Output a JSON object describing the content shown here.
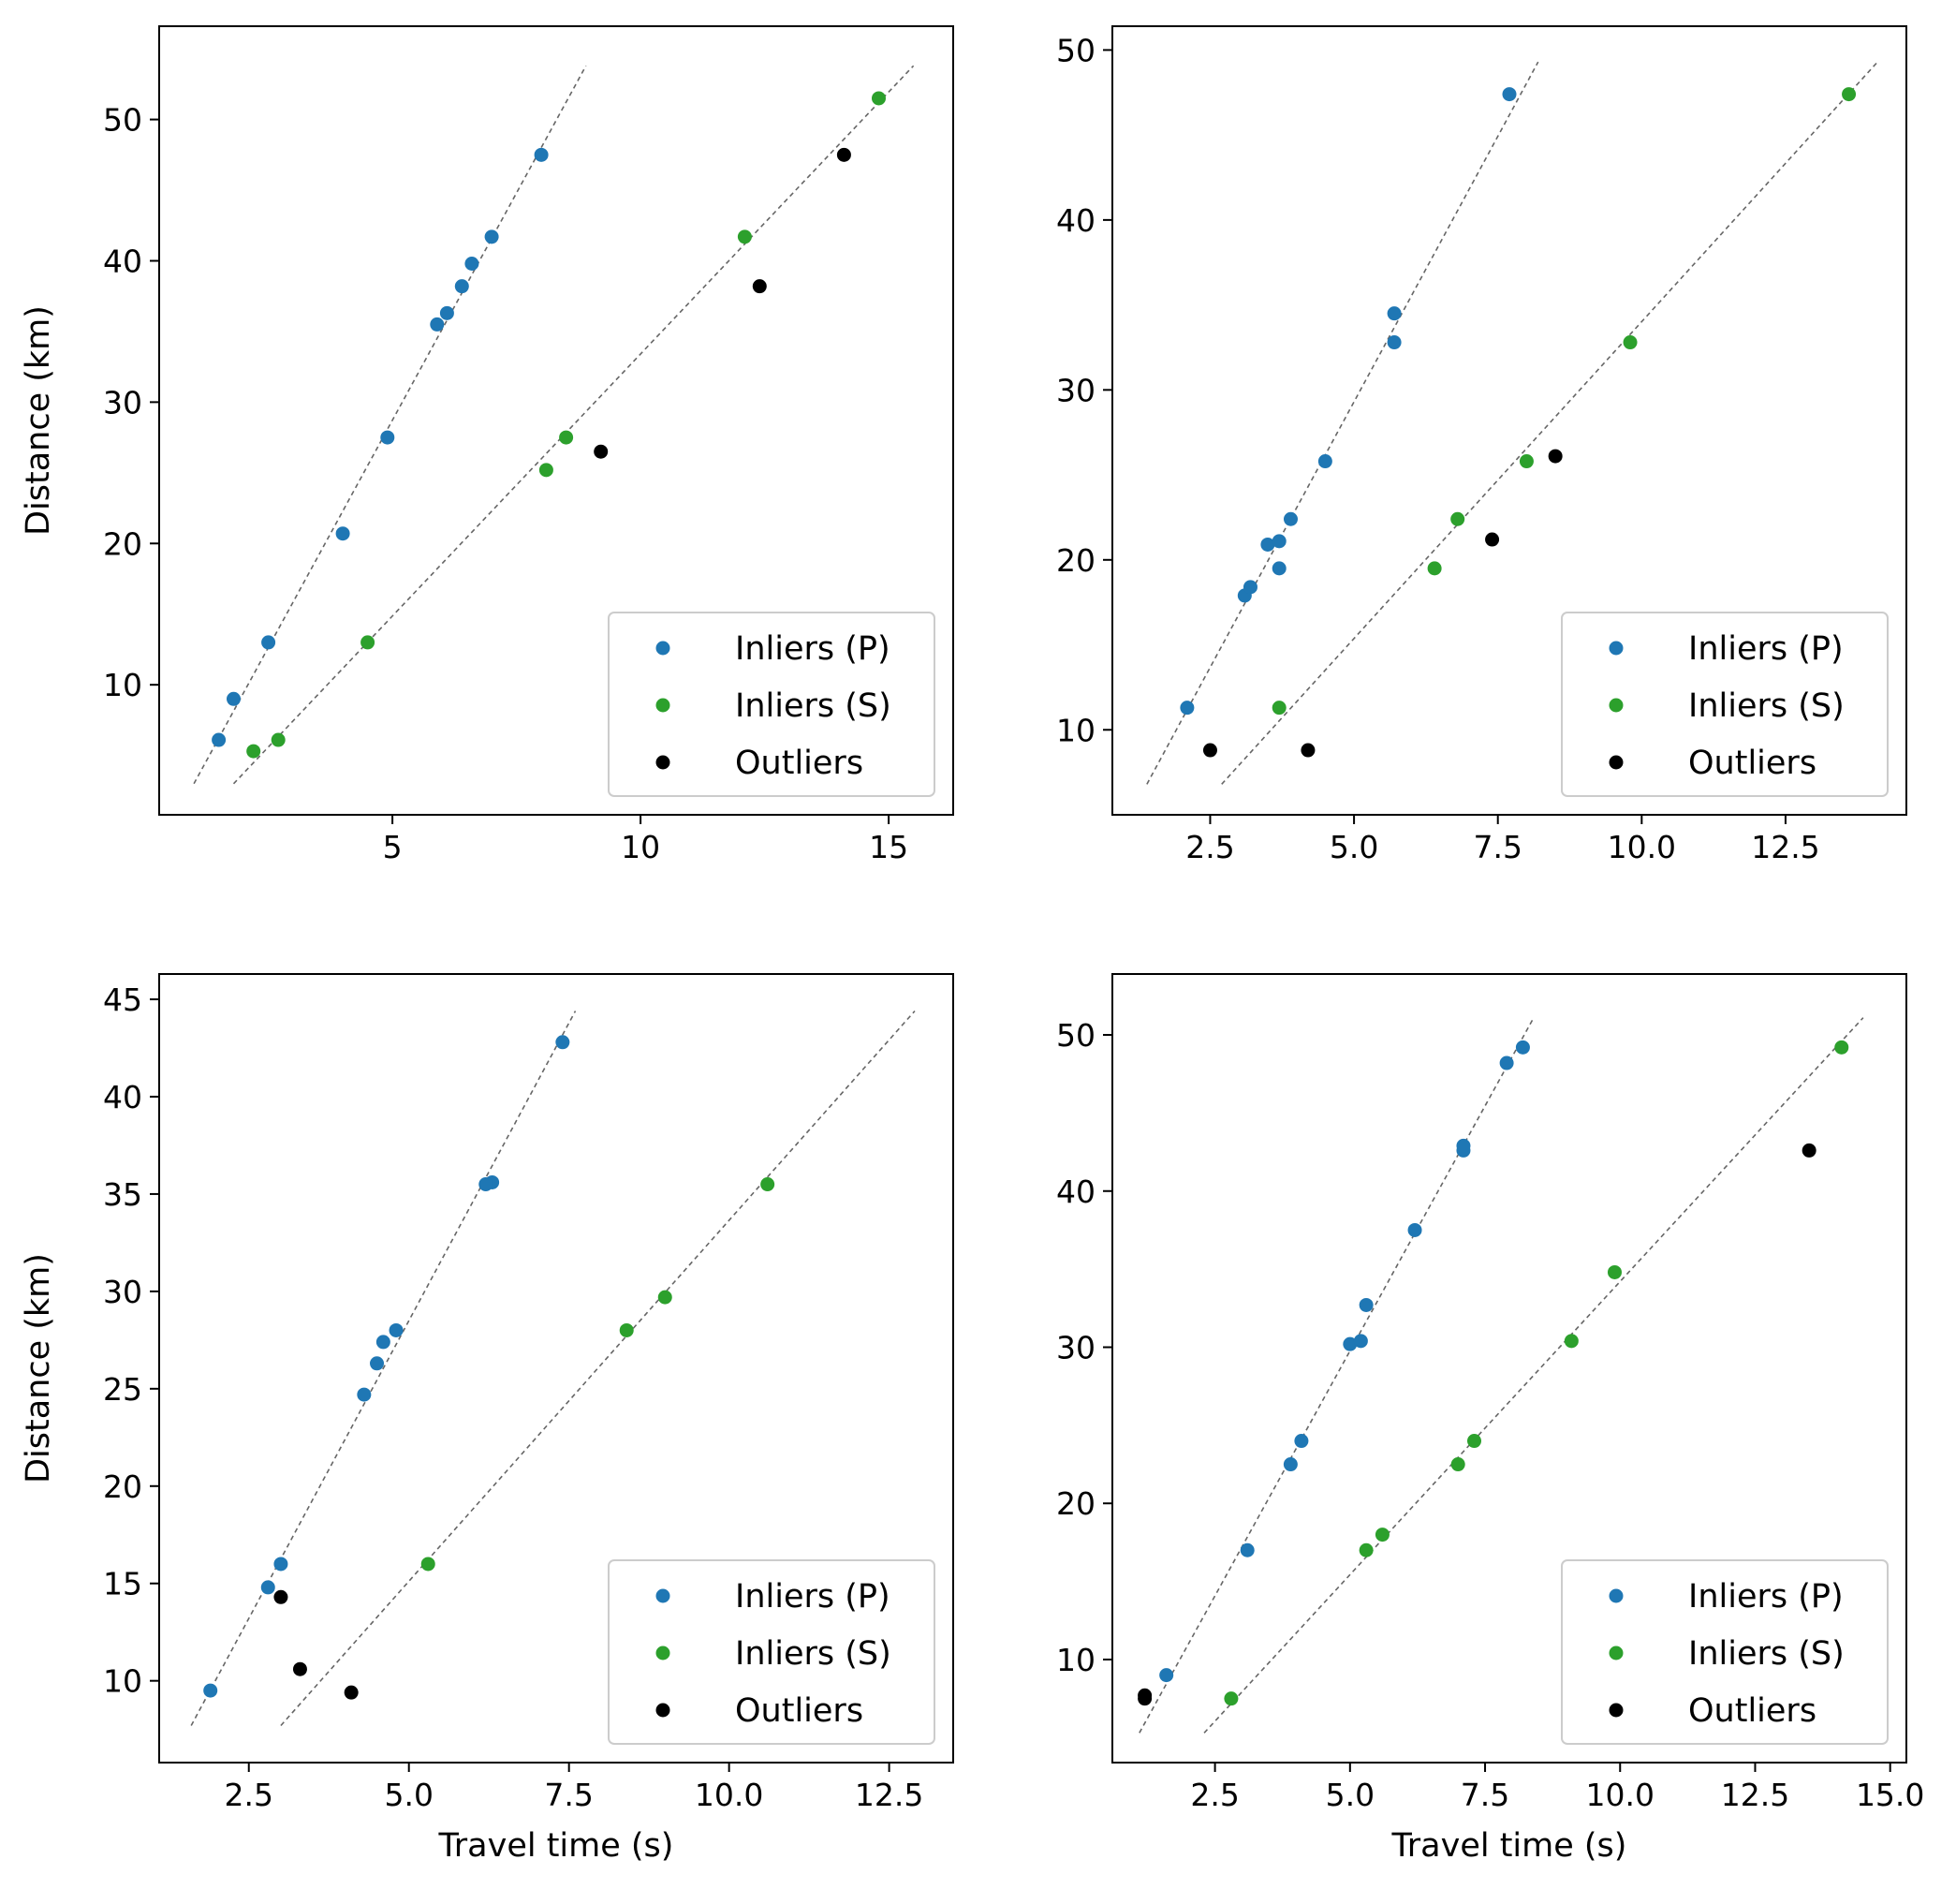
{
  "figure": {
    "colors": {
      "p": "#1f77b4",
      "s": "#2ca02c",
      "outlier": "#000000",
      "fit": "#666666"
    }
  },
  "chart_data": [
    {
      "type": "scatter",
      "title": "",
      "xlabel": "",
      "ylabel": "Distance (km)",
      "xlim": [
        0.3,
        16.3
      ],
      "ylim": [
        0.8,
        56.6
      ],
      "xticks": [
        5,
        10,
        15
      ],
      "yticks": [
        10,
        20,
        30,
        40,
        50
      ],
      "legend_position": "lower-right",
      "series": [
        {
          "name": "Inliers (P)",
          "key": "p",
          "points": [
            [
              1.5,
              6.1
            ],
            [
              1.8,
              9.0
            ],
            [
              2.5,
              13.0
            ],
            [
              4.0,
              20.7
            ],
            [
              4.9,
              27.5
            ],
            [
              5.9,
              35.5
            ],
            [
              6.1,
              36.3
            ],
            [
              6.4,
              38.2
            ],
            [
              6.6,
              39.8
            ],
            [
              7.0,
              41.7
            ],
            [
              8.0,
              47.5
            ]
          ]
        },
        {
          "name": "Inliers (S)",
          "key": "s",
          "points": [
            [
              2.2,
              5.3
            ],
            [
              2.7,
              6.1
            ],
            [
              4.5,
              13.0
            ],
            [
              8.1,
              25.2
            ],
            [
              8.5,
              27.5
            ],
            [
              12.1,
              41.7
            ],
            [
              14.8,
              51.5
            ]
          ]
        },
        {
          "name": "Outliers",
          "key": "outlier",
          "points": [
            [
              9.2,
              26.5
            ],
            [
              12.4,
              38.2
            ],
            [
              14.1,
              47.5
            ]
          ]
        }
      ],
      "fit_lines": [
        {
          "key": "p",
          "from": [
            1.0,
            3.0
          ],
          "to": [
            8.9,
            53.8
          ]
        },
        {
          "key": "s",
          "from": [
            1.8,
            3.0
          ],
          "to": [
            15.5,
            53.8
          ]
        }
      ]
    },
    {
      "type": "scatter",
      "title": "",
      "xlabel": "",
      "ylabel": "",
      "xlim": [
        0.8,
        14.6
      ],
      "ylim": [
        5.0,
        51.4
      ],
      "xticks": [
        2.5,
        5.0,
        7.5,
        10.0,
        12.5
      ],
      "xtick_labels": [
        "2.5",
        "5.0",
        "7.5",
        "10.0",
        "12.5"
      ],
      "yticks": [
        10,
        20,
        30,
        40,
        50
      ],
      "legend_position": "lower-right",
      "series": [
        {
          "name": "Inliers (P)",
          "key": "p",
          "points": [
            [
              2.1,
              11.3
            ],
            [
              3.1,
              17.9
            ],
            [
              3.2,
              18.4
            ],
            [
              3.5,
              20.9
            ],
            [
              3.7,
              21.1
            ],
            [
              3.7,
              19.5
            ],
            [
              3.9,
              22.4
            ],
            [
              4.5,
              25.8
            ],
            [
              5.7,
              32.8
            ],
            [
              5.7,
              34.5
            ],
            [
              7.7,
              47.4
            ]
          ]
        },
        {
          "name": "Inliers (S)",
          "key": "s",
          "points": [
            [
              3.7,
              11.3
            ],
            [
              6.4,
              19.5
            ],
            [
              6.8,
              22.4
            ],
            [
              8.0,
              25.8
            ],
            [
              9.8,
              32.8
            ],
            [
              13.6,
              47.4
            ]
          ]
        },
        {
          "name": "Outliers",
          "key": "outlier",
          "points": [
            [
              2.5,
              8.8
            ],
            [
              4.2,
              8.8
            ],
            [
              7.4,
              21.2
            ],
            [
              8.5,
              26.1
            ]
          ]
        }
      ],
      "fit_lines": [
        {
          "key": "p",
          "from": [
            1.4,
            6.8
          ],
          "to": [
            8.2,
            49.3
          ]
        },
        {
          "key": "s",
          "from": [
            2.7,
            6.8
          ],
          "to": [
            14.1,
            49.3
          ]
        }
      ]
    },
    {
      "type": "scatter",
      "title": "",
      "xlabel": "Travel time (s)",
      "ylabel": "Distance (km)",
      "xlim": [
        1.1,
        13.5
      ],
      "ylim": [
        5.8,
        46.3
      ],
      "xticks": [
        2.5,
        5.0,
        7.5,
        10.0,
        12.5
      ],
      "xtick_labels": [
        "2.5",
        "5.0",
        "7.5",
        "10.0",
        "12.5"
      ],
      "yticks": [
        10,
        15,
        20,
        25,
        30,
        35,
        40,
        45
      ],
      "legend_position": "lower-right",
      "series": [
        {
          "name": "Inliers (P)",
          "key": "p",
          "points": [
            [
              1.9,
              9.5
            ],
            [
              2.8,
              14.8
            ],
            [
              3.0,
              16.0
            ],
            [
              4.3,
              24.7
            ],
            [
              4.5,
              26.3
            ],
            [
              4.6,
              27.4
            ],
            [
              4.8,
              28.0
            ],
            [
              6.3,
              35.6
            ],
            [
              6.2,
              35.5
            ],
            [
              7.4,
              42.8
            ]
          ]
        },
        {
          "name": "Inliers (S)",
          "key": "s",
          "points": [
            [
              5.3,
              16.0
            ],
            [
              8.4,
              28.0
            ],
            [
              9.0,
              29.7
            ],
            [
              10.6,
              35.5
            ]
          ]
        },
        {
          "name": "Outliers",
          "key": "outlier",
          "points": [
            [
              3.0,
              14.3
            ],
            [
              3.3,
              10.6
            ],
            [
              4.1,
              9.4
            ]
          ]
        }
      ],
      "fit_lines": [
        {
          "key": "p",
          "from": [
            1.6,
            7.7
          ],
          "to": [
            7.6,
            44.4
          ]
        },
        {
          "key": "s",
          "from": [
            3.0,
            7.7
          ],
          "to": [
            12.9,
            44.4
          ]
        }
      ]
    },
    {
      "type": "scatter",
      "title": "",
      "xlabel": "Travel time (s)",
      "ylabel": "",
      "xlim": [
        0.6,
        15.3
      ],
      "ylim": [
        3.4,
        53.9
      ],
      "xticks": [
        2.5,
        5.0,
        7.5,
        10.0,
        12.5,
        15.0
      ],
      "xtick_labels": [
        "2.5",
        "5.0",
        "7.5",
        "10.0",
        "12.5",
        "15.0"
      ],
      "yticks": [
        10,
        20,
        30,
        40,
        50
      ],
      "legend_position": "lower-right",
      "series": [
        {
          "name": "Inliers (P)",
          "key": "p",
          "points": [
            [
              1.6,
              9.0
            ],
            [
              3.1,
              17.0
            ],
            [
              3.9,
              22.5
            ],
            [
              4.1,
              24.0
            ],
            [
              5.0,
              30.2
            ],
            [
              5.2,
              30.4
            ],
            [
              5.3,
              32.7
            ],
            [
              6.2,
              37.5
            ],
            [
              7.1,
              42.6
            ],
            [
              7.1,
              42.9
            ],
            [
              7.9,
              48.2
            ],
            [
              8.2,
              49.2
            ]
          ]
        },
        {
          "name": "Inliers (S)",
          "key": "s",
          "points": [
            [
              2.8,
              7.5
            ],
            [
              5.3,
              17.0
            ],
            [
              5.6,
              18.0
            ],
            [
              7.0,
              22.5
            ],
            [
              7.3,
              24.0
            ],
            [
              9.1,
              30.4
            ],
            [
              9.9,
              34.8
            ],
            [
              14.1,
              49.2
            ]
          ]
        },
        {
          "name": "Outliers",
          "key": "outlier",
          "points": [
            [
              1.2,
              7.5
            ],
            [
              1.2,
              7.7
            ],
            [
              13.5,
              42.6
            ]
          ]
        }
      ],
      "fit_lines": [
        {
          "key": "p",
          "from": [
            1.1,
            5.3
          ],
          "to": [
            8.4,
            51.1
          ]
        },
        {
          "key": "s",
          "from": [
            2.3,
            5.3
          ],
          "to": [
            14.5,
            51.1
          ]
        }
      ]
    }
  ]
}
